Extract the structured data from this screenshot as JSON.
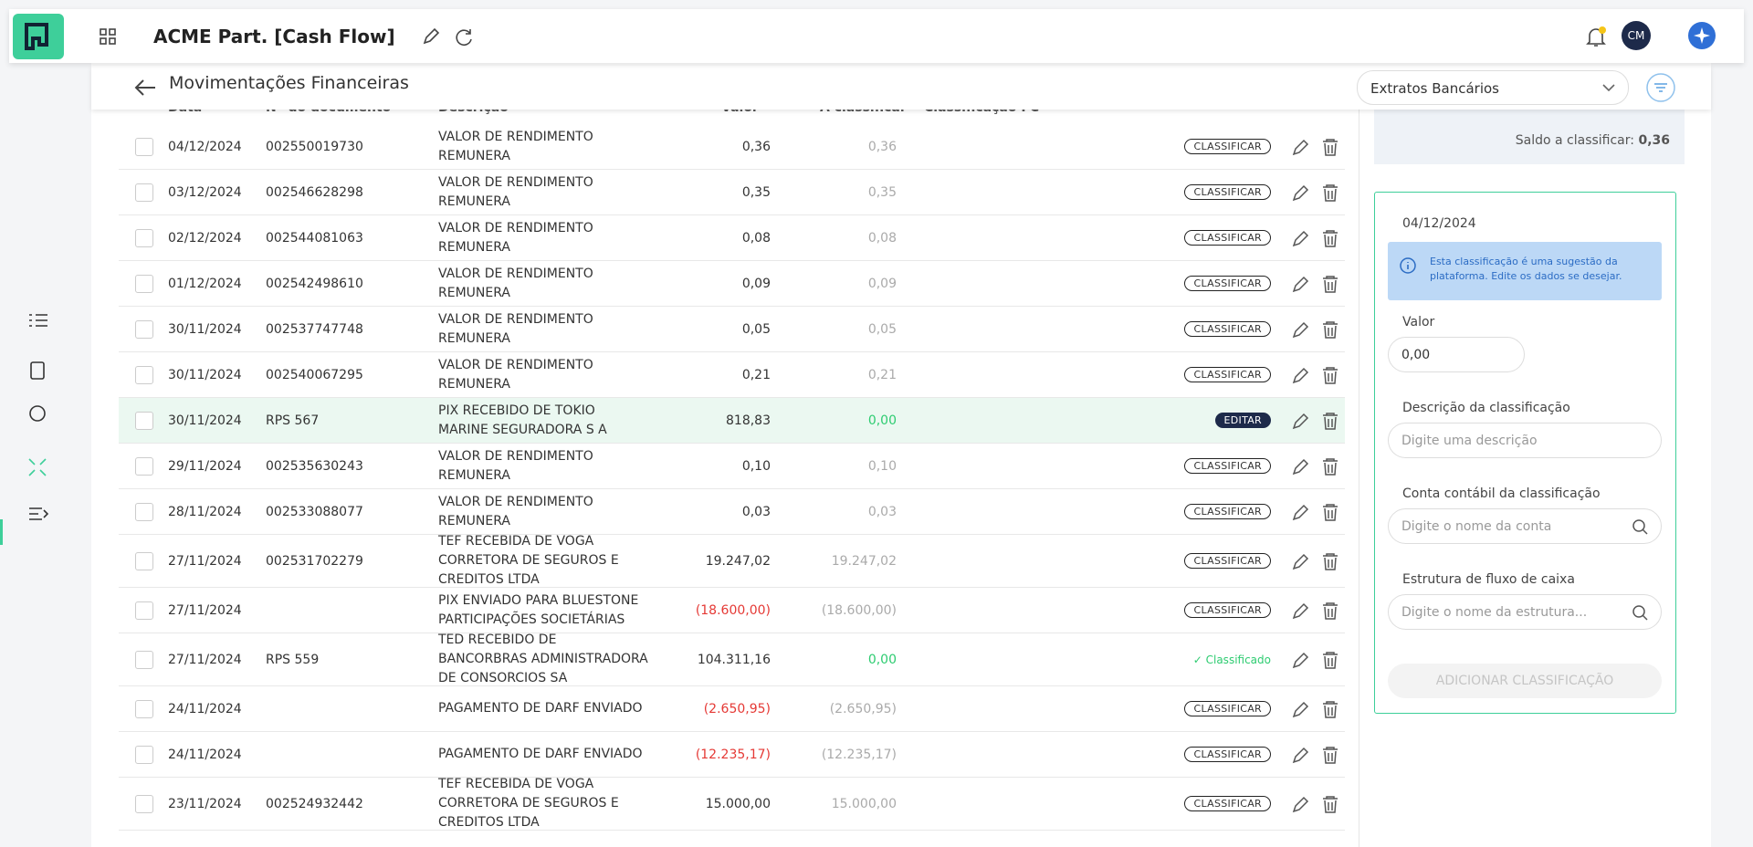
{
  "header": {
    "app_title": "ACME Part. [Cash Flow]",
    "avatar": "CM"
  },
  "page": {
    "title": "Movimentações Financeiras",
    "source_select": "Extratos Bancários"
  },
  "table": {
    "columns": [
      "Data",
      "Nº do documento",
      "Descrição",
      "Valor",
      "A classificar",
      "Classificação FC"
    ],
    "rows": [
      {
        "date": "04/12/2024",
        "doc": "002550019730",
        "desc": "VALOR DE RENDIMENTO REMUNERA",
        "value": "0,36",
        "pending": "0,36",
        "status": "CLASSIFICAR"
      },
      {
        "date": "03/12/2024",
        "doc": "002546628298",
        "desc": "VALOR DE RENDIMENTO REMUNERA",
        "value": "0,35",
        "pending": "0,35",
        "status": "CLASSIFICAR"
      },
      {
        "date": "02/12/2024",
        "doc": "002544081063",
        "desc": "VALOR DE RENDIMENTO REMUNERA",
        "value": "0,08",
        "pending": "0,08",
        "status": "CLASSIFICAR"
      },
      {
        "date": "01/12/2024",
        "doc": "002542498610",
        "desc": "VALOR DE RENDIMENTO REMUNERA",
        "value": "0,09",
        "pending": "0,09",
        "status": "CLASSIFICAR"
      },
      {
        "date": "30/11/2024",
        "doc": "002537747748",
        "desc": "VALOR DE RENDIMENTO REMUNERA",
        "value": "0,05",
        "pending": "0,05",
        "status": "CLASSIFICAR"
      },
      {
        "date": "30/11/2024",
        "doc": "002540067295",
        "desc": "VALOR DE RENDIMENTO REMUNERA",
        "value": "0,21",
        "pending": "0,21",
        "status": "CLASSIFICAR"
      },
      {
        "date": "30/11/2024",
        "doc": "RPS 567",
        "desc": "PIX RECEBIDO DE TOKIO MARINE SEGURADORA S A",
        "value": "818,83",
        "pending": "0,00",
        "status": "EDITAR"
      },
      {
        "date": "29/11/2024",
        "doc": "002535630243",
        "desc": "VALOR DE RENDIMENTO REMUNERA",
        "value": "0,10",
        "pending": "0,10",
        "status": "CLASSIFICAR"
      },
      {
        "date": "28/11/2024",
        "doc": "002533088077",
        "desc": "VALOR DE RENDIMENTO REMUNERA",
        "value": "0,03",
        "pending": "0,03",
        "status": "CLASSIFICAR"
      },
      {
        "date": "27/11/2024",
        "doc": "002531702279",
        "desc": "TEF RECEBIDA DE VOGA CORRETORA DE SEGUROS E CREDITOS LTDA",
        "value": "19.247,02",
        "pending": "19.247,02",
        "status": "CLASSIFICAR"
      },
      {
        "date": "27/11/2024",
        "desc": "PIX ENVIADO PARA BLUESTONE PARTICIPAÇÕES SOCIETÁRIAS",
        "value": "(18.600,00)",
        "pending": "(18.600,00)",
        "status": "CLASSIFICAR"
      },
      {
        "date": "27/11/2024",
        "doc": "RPS 559",
        "desc": "TED RECEBIDO DE BANCORBRAS ADMINISTRADORA DE CONSORCIOS SA",
        "value": "104.311,16",
        "pending": "0,00",
        "status": "Classificado"
      },
      {
        "date": "24/11/2024",
        "desc": "PAGAMENTO DE DARF ENVIADO",
        "value": "(2.650,95)",
        "pending": "(2.650,95)",
        "status": "CLASSIFICAR"
      },
      {
        "date": "24/11/2024",
        "desc": "PAGAMENTO DE DARF ENVIADO",
        "value": "(12.235,17)",
        "pending": "(12.235,17)",
        "status": "CLASSIFICAR"
      },
      {
        "date": "23/11/2024",
        "doc": "002524932442",
        "desc": "TEF RECEBIDA DE VOGA CORRETORA DE SEGUROS E CREDITOS LTDA",
        "value": "15.000,00",
        "pending": "15.000,00",
        "status": "CLASSIFICAR"
      }
    ]
  },
  "panel": {
    "balance_label": "Saldo a classificar:",
    "balance_value": "0,36",
    "date": "04/12/2024",
    "info": "Esta classificação é uma sugestão da plataforma. Edite os dados se desejar.",
    "fields": [
      {
        "label": "Valor",
        "value": "0,00"
      },
      {
        "label": "Descrição da classificação",
        "placeholder": "Digite uma descrição"
      },
      {
        "label": "Conta contábil da classificação",
        "placeholder": "Digite o nome da conta"
      },
      {
        "label": "Estrutura de fluxo de caixa",
        "placeholder": "Digite o nome da estrutura..."
      }
    ],
    "button": "ADICIONAR CLASSIFICAÇÃO"
  }
}
